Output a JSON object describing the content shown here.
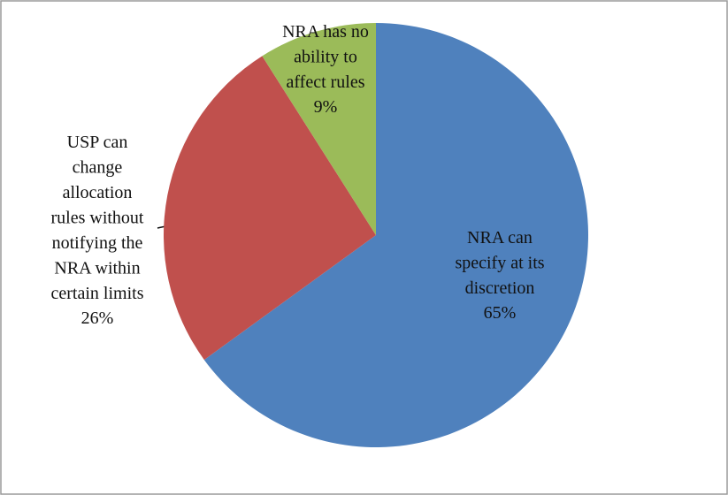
{
  "chart_data": {
    "type": "pie",
    "categories": [
      "NRA can specify at its discretion",
      "USP can change allocation rules without notifying the NRA within certain limits",
      "NRA has no ability to affect rules"
    ],
    "values": [
      65,
      26,
      9
    ],
    "value_labels": [
      "65%",
      "26%",
      "9%"
    ],
    "colors": [
      "#4f81bd",
      "#c0504d",
      "#9bbb59"
    ]
  }
}
